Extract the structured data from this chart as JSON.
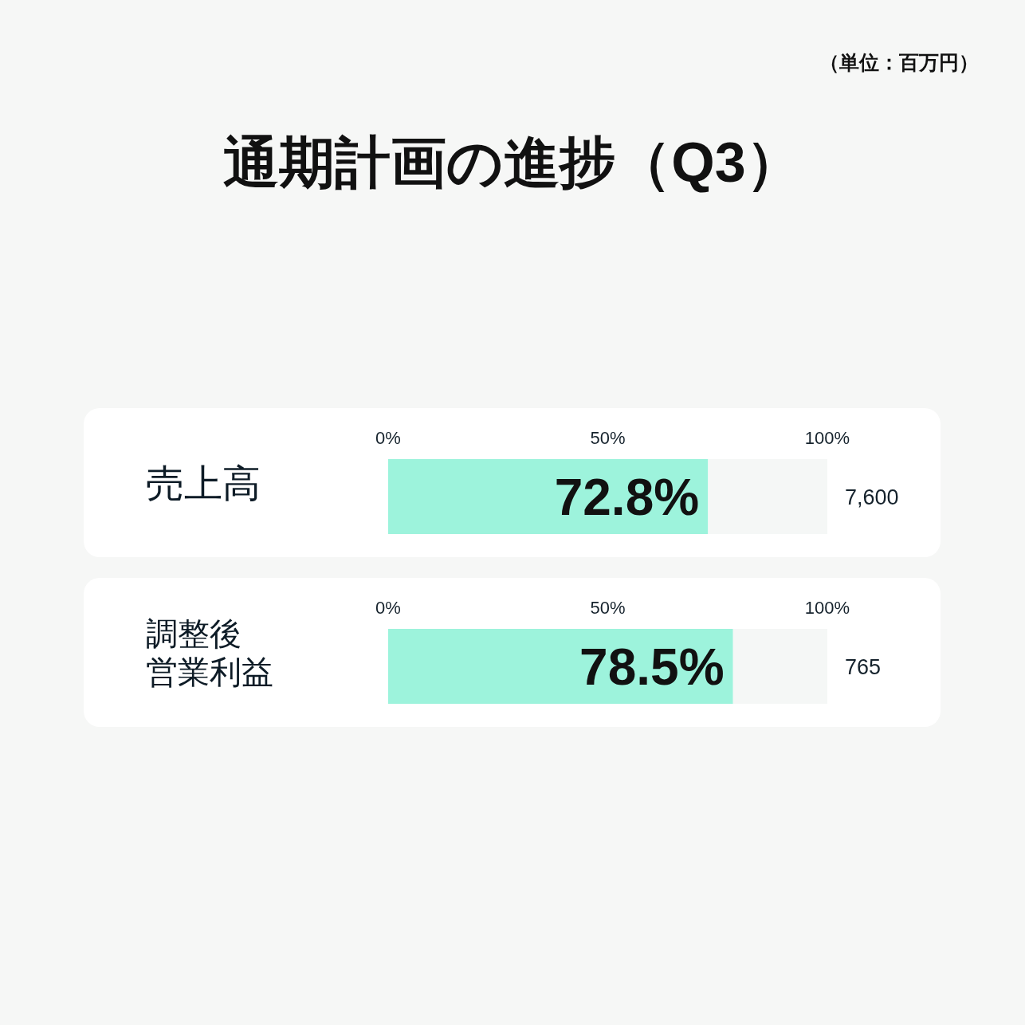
{
  "chart_data": [
    {
      "type": "bar",
      "orientation": "horizontal",
      "title": "通期計画の進捗（Q3）",
      "categories": [
        "売上高"
      ],
      "values": [
        72.8
      ],
      "value_labels": [
        "72.8%"
      ],
      "color": "#9df3dc",
      "xlim": [
        0,
        100
      ],
      "xticks": [
        {
          "value": 0,
          "label": "0%"
        },
        {
          "value": 50,
          "label": "50%"
        },
        {
          "value": 100,
          "label": "100%"
        }
      ],
      "annotations": [
        "（単位：百万円）",
        "7,600"
      ]
    },
    {
      "type": "bar",
      "orientation": "horizontal",
      "categories": [
        "調整後営業利益"
      ],
      "values": [
        78.5
      ],
      "value_labels": [
        "78.5%"
      ],
      "color": "#9df3dc",
      "xlim": [
        0,
        100
      ],
      "xticks": [
        {
          "value": 0,
          "label": "0%"
        },
        {
          "value": 50,
          "label": "50%"
        },
        {
          "value": 100,
          "label": "100%"
        }
      ],
      "annotations": [
        "765"
      ]
    }
  ]
}
